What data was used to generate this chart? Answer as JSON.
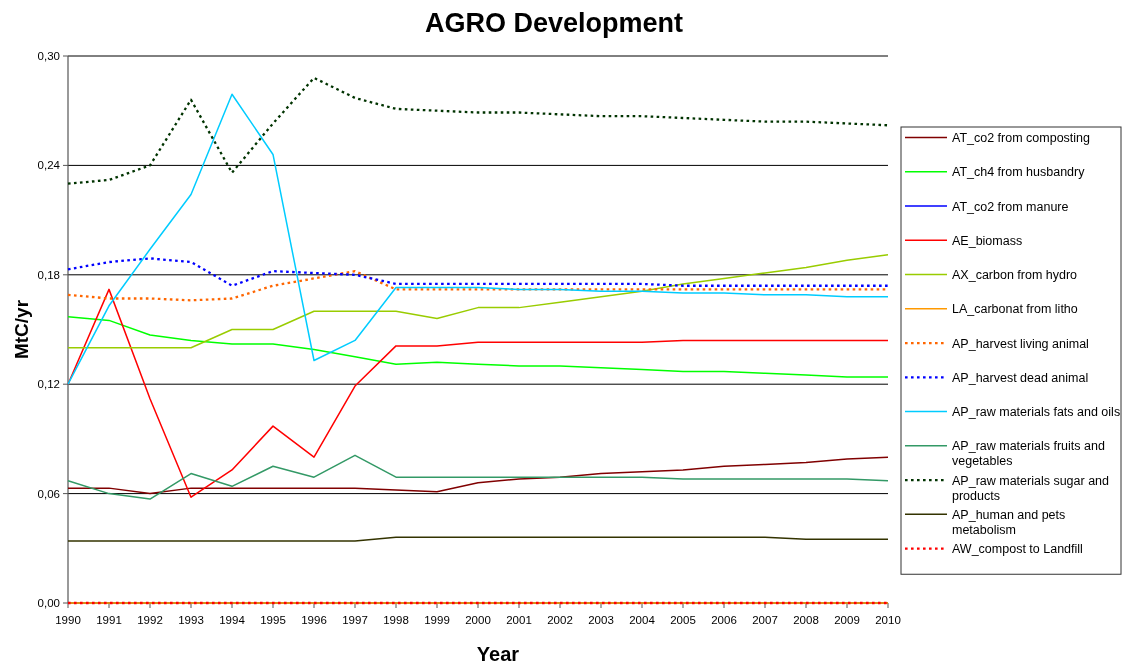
{
  "chart_data": {
    "type": "line",
    "title": "AGRO Development",
    "xlabel": "Year",
    "ylabel": "MtC/yr",
    "x": [
      1990,
      1991,
      1992,
      1993,
      1994,
      1995,
      1996,
      1997,
      1998,
      1999,
      2000,
      2001,
      2002,
      2003,
      2004,
      2005,
      2006,
      2007,
      2008,
      2009,
      2010
    ],
    "xlim": [
      1990,
      2010
    ],
    "xticks": [
      1990,
      1991,
      1992,
      1993,
      1994,
      1995,
      1996,
      1997,
      1998,
      1999,
      2000,
      2001,
      2002,
      2003,
      2004,
      2005,
      2006,
      2007,
      2008,
      2009,
      2010
    ],
    "ylim": [
      0,
      0.3
    ],
    "yticks": [
      {
        "value": 0,
        "label": "0,00"
      },
      {
        "value": 0.06,
        "label": "0,06"
      },
      {
        "value": 0.12,
        "label": "0,12"
      },
      {
        "value": 0.18,
        "label": "0,18"
      },
      {
        "value": 0.24,
        "label": "0,24"
      },
      {
        "value": 0.3,
        "label": "0,30"
      }
    ],
    "grid": "y",
    "legend": "right",
    "series": [
      {
        "name": "AT_co2 from composting",
        "color": "#800000",
        "line_style": "solid",
        "values": [
          0.063,
          0.063,
          0.06,
          0.063,
          0.063,
          0.063,
          0.063,
          0.063,
          0.062,
          0.061,
          0.066,
          0.068,
          0.069,
          0.071,
          0.072,
          0.073,
          0.075,
          0.076,
          0.077,
          0.079,
          0.08
        ]
      },
      {
        "name": "AT_ch4 from husbandry",
        "color": "#00ff00",
        "line_style": "solid",
        "values": [
          0.157,
          0.155,
          0.147,
          0.144,
          0.142,
          0.142,
          0.139,
          0.135,
          0.131,
          0.132,
          0.131,
          0.13,
          0.13,
          0.129,
          0.128,
          0.127,
          0.127,
          0.126,
          0.125,
          0.124,
          0.124
        ]
      },
      {
        "name": "AT_co2 from manure",
        "color": "#0000ff",
        "line_style": "solid",
        "values": [
          null,
          null,
          null,
          null,
          null,
          null,
          null,
          null,
          null,
          null,
          null,
          null,
          null,
          null,
          null,
          null,
          null,
          null,
          null,
          null,
          null
        ]
      },
      {
        "name": "AE_biomass",
        "color": "#ff0000",
        "line_style": "solid",
        "values": [
          0.12,
          0.172,
          0.112,
          0.058,
          0.073,
          0.097,
          0.08,
          0.119,
          0.141,
          0.141,
          0.143,
          0.143,
          0.143,
          0.143,
          0.143,
          0.144,
          0.144,
          0.144,
          0.144,
          0.144,
          0.144
        ]
      },
      {
        "name": "AX_carbon from hydro",
        "color": "#99cc00",
        "line_style": "solid",
        "values": [
          0.14,
          0.14,
          0.14,
          0.14,
          0.15,
          0.15,
          0.16,
          0.16,
          0.16,
          0.156,
          0.162,
          0.162,
          0.165,
          0.168,
          0.171,
          0.175,
          0.178,
          0.181,
          0.184,
          0.188,
          0.191
        ]
      },
      {
        "name": "LA_carbonat from litho",
        "color": "#ff9900",
        "line_style": "solid",
        "values": [
          0,
          0,
          0,
          0,
          0,
          0,
          0,
          0,
          0,
          0,
          0,
          0,
          0,
          0,
          0,
          0,
          0,
          0,
          0,
          0,
          0
        ]
      },
      {
        "name": "AP_harvest living animal",
        "color": "#ff6600",
        "line_style": "dotted",
        "values": [
          0.169,
          0.167,
          0.167,
          0.166,
          0.167,
          0.174,
          0.178,
          0.182,
          0.172,
          0.172,
          0.172,
          0.172,
          0.172,
          0.172,
          0.172,
          0.172,
          0.172,
          0.172,
          0.172,
          0.172,
          0.172
        ]
      },
      {
        "name": "AP_harvest dead animal",
        "color": "#0000ff",
        "line_style": "dotted",
        "values": [
          0.183,
          0.187,
          0.189,
          0.187,
          0.174,
          0.182,
          0.181,
          0.18,
          0.175,
          0.175,
          0.175,
          0.175,
          0.175,
          0.175,
          0.175,
          0.174,
          0.174,
          0.174,
          0.174,
          0.174,
          0.174
        ]
      },
      {
        "name": "AP_raw materials fats and oils",
        "color": "#00ccff",
        "line_style": "solid",
        "values": [
          0.12,
          0.163,
          0.194,
          0.224,
          0.279,
          0.246,
          0.133,
          0.144,
          0.173,
          0.173,
          0.173,
          0.172,
          0.172,
          0.171,
          0.171,
          0.17,
          0.17,
          0.169,
          0.169,
          0.168,
          0.168
        ]
      },
      {
        "name": "AP_raw materials fruits and vegetables",
        "color": "#339966",
        "line_style": "solid",
        "values": [
          0.067,
          0.06,
          0.057,
          0.071,
          0.064,
          0.075,
          0.069,
          0.081,
          0.069,
          0.069,
          0.069,
          0.069,
          0.069,
          0.069,
          0.069,
          0.068,
          0.068,
          0.068,
          0.068,
          0.068,
          0.067
        ]
      },
      {
        "name": "AP_raw materials sugar and products",
        "color": "#003300",
        "line_style": "dotted",
        "values": [
          0.23,
          0.232,
          0.24,
          0.276,
          0.236,
          0.263,
          0.288,
          0.277,
          0.271,
          0.27,
          0.269,
          0.269,
          0.268,
          0.267,
          0.267,
          0.266,
          0.265,
          0.264,
          0.264,
          0.263,
          0.262
        ]
      },
      {
        "name": "AP_human and pets metabolism",
        "color": "#333300",
        "line_style": "solid",
        "values": [
          0.034,
          0.034,
          0.034,
          0.034,
          0.034,
          0.034,
          0.034,
          0.034,
          0.036,
          0.036,
          0.036,
          0.036,
          0.036,
          0.036,
          0.036,
          0.036,
          0.036,
          0.036,
          0.035,
          0.035,
          0.035
        ]
      },
      {
        "name": "AW_compost to Landfill",
        "color": "#ff0000",
        "line_style": "dotted",
        "values": [
          0,
          0,
          0,
          0,
          0,
          0,
          0,
          0,
          0,
          0,
          0,
          0,
          0,
          0,
          0,
          0,
          0,
          0,
          0,
          0,
          0
        ]
      }
    ]
  }
}
